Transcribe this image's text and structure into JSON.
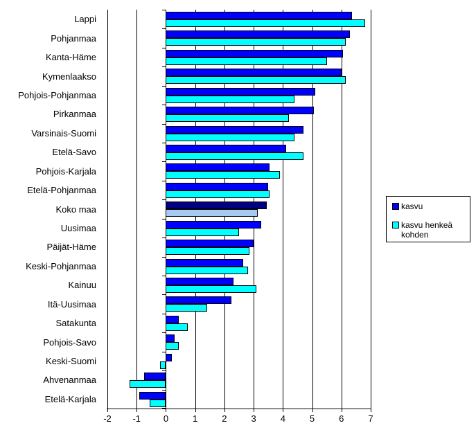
{
  "chart_data": {
    "type": "bar",
    "orientation": "horizontal",
    "title": "",
    "xlabel": "",
    "ylabel": "",
    "xlim": [
      -2,
      7
    ],
    "x_ticks": [
      "-2",
      "-1",
      "0",
      "1",
      "2",
      "3",
      "4",
      "5",
      "6",
      "7"
    ],
    "grid": true,
    "legend_position": "right",
    "categories": [
      "Lappi",
      "Pohjanmaa",
      "Kanta-Häme",
      "Kymenlaakso",
      "Pohjois-Pohjanmaa",
      "Pirkanmaa",
      "Varsinais-Suomi",
      "Etelä-Savo",
      "Pohjois-Karjala",
      "Etelä-Pohjanmaa",
      "Koko maa",
      "Uusimaa",
      "Päijät-Häme",
      "Keski-Pohjanmaa",
      "Kainuu",
      "Itä-Uusimaa",
      "Satakunta",
      "Pohjois-Savo",
      "Keski-Suomi",
      "Ahvenanmaa",
      "Etelä-Karjala"
    ],
    "series": [
      {
        "name": "kasvu",
        "color": "#0000ff",
        "values": [
          6.35,
          6.3,
          6.05,
          6.0,
          5.1,
          5.05,
          4.7,
          4.1,
          3.55,
          3.5,
          3.45,
          3.25,
          3.0,
          2.65,
          2.3,
          2.25,
          0.45,
          0.3,
          0.2,
          -0.75,
          -0.9
        ]
      },
      {
        "name": "kasvu henkeä kohden",
        "color": "#00ffff",
        "values": [
          6.8,
          6.15,
          5.5,
          6.15,
          4.4,
          4.2,
          4.4,
          4.7,
          3.9,
          3.55,
          3.15,
          2.5,
          2.85,
          2.8,
          3.1,
          1.4,
          0.75,
          0.45,
          -0.2,
          -1.25,
          -0.55
        ]
      }
    ],
    "highlight": {
      "category": "Koko maa",
      "colors": [
        "#000080",
        "#a6caf0"
      ]
    },
    "bar_border_color": "#000000",
    "gridline_color": "#000000"
  },
  "legend": {
    "items": [
      {
        "label": "kasvu",
        "color": "#0000ff"
      },
      {
        "label": "kasvu henkeä kohden",
        "color": "#00ffff"
      }
    ]
  }
}
